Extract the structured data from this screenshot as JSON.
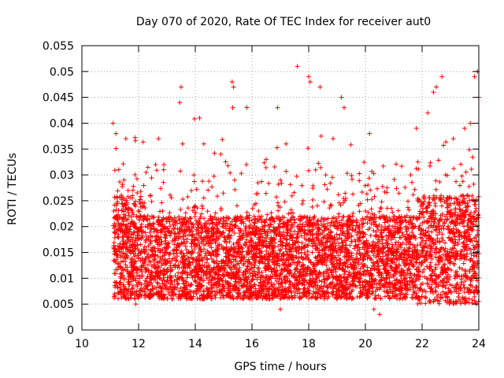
{
  "chart_data": {
    "type": "scatter",
    "title": "Day 070 of 2020, Rate Of TEC Index for receiver aut0",
    "xlabel": "GPS time / hours",
    "ylabel": "ROTI / TECUs",
    "xlim": [
      10,
      24
    ],
    "ylim": [
      0,
      0.055
    ],
    "xticks": [
      10,
      12,
      14,
      16,
      18,
      20,
      22,
      24
    ],
    "xtick_labels": [
      "10",
      "12",
      "14",
      "16",
      "18",
      "20",
      "22",
      "24"
    ],
    "yticks": [
      0,
      0.005,
      0.01,
      0.015,
      0.02,
      0.025,
      0.03,
      0.035,
      0.04,
      0.045,
      0.05,
      0.055
    ],
    "ytick_labels": [
      "0",
      "0.005",
      "0.01",
      "0.015",
      "0.02",
      "0.025",
      "0.03",
      "0.035",
      "0.04",
      "0.045",
      "0.05",
      "0.055"
    ],
    "grid": true,
    "marker": "+",
    "series_color": "#ff0000",
    "x_data_range": [
      11.1,
      24.0
    ],
    "sampled_points": [
      [
        11.1,
        0.04
      ],
      [
        11.12,
        0.016
      ],
      [
        11.15,
        0.007
      ],
      [
        11.2,
        0.038
      ],
      [
        11.3,
        0.031
      ],
      [
        11.4,
        0.011
      ],
      [
        11.55,
        0.037
      ],
      [
        11.65,
        0.006
      ],
      [
        11.8,
        0.027
      ],
      [
        11.9,
        0.005
      ],
      [
        12.0,
        0.014
      ],
      [
        12.2,
        0.022
      ],
      [
        12.5,
        0.01
      ],
      [
        12.6,
        0.032
      ],
      [
        12.7,
        0.037
      ],
      [
        13.0,
        0.015
      ],
      [
        13.2,
        0.006
      ],
      [
        13.45,
        0.044
      ],
      [
        13.5,
        0.047
      ],
      [
        13.55,
        0.036
      ],
      [
        13.8,
        0.012
      ],
      [
        14.0,
        0.024
      ],
      [
        14.15,
        0.041
      ],
      [
        14.3,
        0.036
      ],
      [
        14.5,
        0.011
      ],
      [
        14.9,
        0.034
      ],
      [
        15.0,
        0.008
      ],
      [
        15.3,
        0.048
      ],
      [
        15.35,
        0.047
      ],
      [
        15.32,
        0.043
      ],
      [
        15.6,
        0.015
      ],
      [
        15.8,
        0.032
      ],
      [
        16.0,
        0.006
      ],
      [
        16.2,
        0.021
      ],
      [
        16.5,
        0.033
      ],
      [
        16.8,
        0.012
      ],
      [
        16.9,
        0.043
      ],
      [
        17.0,
        0.004
      ],
      [
        17.2,
        0.036
      ],
      [
        17.5,
        0.013
      ],
      [
        17.6,
        0.051
      ],
      [
        17.8,
        0.025
      ],
      [
        18.0,
        0.049
      ],
      [
        18.05,
        0.048
      ],
      [
        18.2,
        0.009
      ],
      [
        18.4,
        0.047
      ],
      [
        18.6,
        0.03
      ],
      [
        18.8,
        0.016
      ],
      [
        19.0,
        0.006
      ],
      [
        19.15,
        0.045
      ],
      [
        19.25,
        0.043
      ],
      [
        19.5,
        0.018
      ],
      [
        19.8,
        0.01
      ],
      [
        20.0,
        0.023
      ],
      [
        20.3,
        0.004
      ],
      [
        20.5,
        0.003
      ],
      [
        20.7,
        0.016
      ],
      [
        21.0,
        0.022
      ],
      [
        21.3,
        0.008
      ],
      [
        21.6,
        0.03
      ],
      [
        21.8,
        0.039
      ],
      [
        22.0,
        0.013
      ],
      [
        22.2,
        0.042
      ],
      [
        22.4,
        0.046
      ],
      [
        22.5,
        0.047
      ],
      [
        22.7,
        0.049
      ],
      [
        22.9,
        0.012
      ],
      [
        23.1,
        0.037
      ],
      [
        23.3,
        0.008
      ],
      [
        23.5,
        0.039
      ],
      [
        23.7,
        0.04
      ],
      [
        23.85,
        0.049
      ],
      [
        23.95,
        0.05
      ],
      [
        24.0,
        0.045
      ]
    ]
  }
}
